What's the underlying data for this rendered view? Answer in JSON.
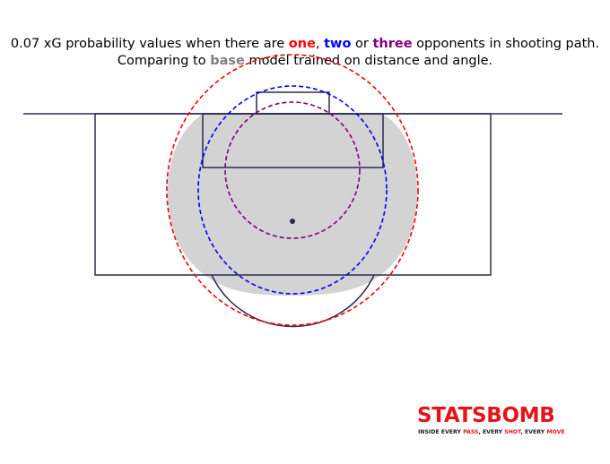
{
  "title": {
    "line1_prefix": "0.07 xG probability values when there are ",
    "one": "one",
    "sep1": ", ",
    "two": "two",
    "sep2": " or ",
    "three": "three",
    "line1_suffix": " opponents in shooting path.",
    "line2_prefix": "Comparing to ",
    "base": "base",
    "line2_suffix": " model trained on distance and angle."
  },
  "colors": {
    "one": "#ff0000",
    "two": "#0000ff",
    "three": "#800080",
    "base": "#808080",
    "pitch_lines": "#2b2b4b",
    "base_fill": "#d3d3d3"
  },
  "chart_data": {
    "type": "area",
    "probability_level": 0.07,
    "series": [
      {
        "name": "base",
        "style": "filled"
      },
      {
        "name": "one",
        "style": "dashed"
      },
      {
        "name": "two",
        "style": "dashed"
      },
      {
        "name": "three",
        "style": "dashed"
      }
    ]
  },
  "logo": {
    "wordmark": "STATSBOMB",
    "tag_parts": [
      "INSIDE EVERY ",
      "PASS",
      ", EVERY ",
      "SHOT",
      ", EVERY ",
      "MOVE"
    ]
  }
}
